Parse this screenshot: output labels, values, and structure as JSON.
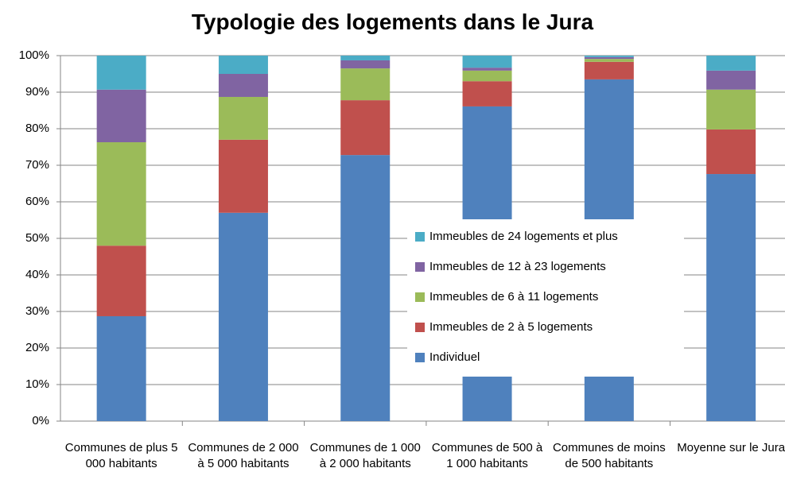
{
  "chart_data": {
    "type": "bar",
    "stacked": true,
    "title": "Typologie des logements dans le Jura",
    "categories": [
      "Communes de plus 5 000 habitants",
      "Communes de 2 000 à 5 000 habitants",
      "Communes de 1 000 à 2 000 habitants",
      "Communes de 500 à 1 000 habitants",
      "Communes de moins de 500 habitants",
      "Moyenne sur le Jura"
    ],
    "series": [
      {
        "name": "Individuel",
        "color": "#4f81bd",
        "values": [
          28.7,
          57.0,
          72.8,
          86.1,
          93.5,
          67.6
        ]
      },
      {
        "name": "Immeubles de 2 à 5 logements",
        "color": "#c0504d",
        "values": [
          19.3,
          20.0,
          15.0,
          6.9,
          4.8,
          12.2
        ]
      },
      {
        "name": "Immeubles de 6 à 11 logements",
        "color": "#9bbb59",
        "values": [
          28.3,
          11.7,
          8.7,
          2.9,
          0.8,
          10.9
        ]
      },
      {
        "name": "Immeubles de 12 à 23 logements",
        "color": "#8064a2",
        "values": [
          14.4,
          6.3,
          2.2,
          0.8,
          0.5,
          5.2
        ]
      },
      {
        "name": "Immeubles de 24 logements et plus",
        "color": "#4bacc6",
        "values": [
          9.3,
          5.0,
          1.3,
          3.3,
          0.4,
          4.1
        ]
      }
    ],
    "ylim": [
      0,
      100
    ],
    "yticks": [
      {
        "value": 0,
        "label": "0%"
      },
      {
        "value": 10,
        "label": "10%"
      },
      {
        "value": 20,
        "label": "20%"
      },
      {
        "value": 30,
        "label": "30%"
      },
      {
        "value": 40,
        "label": "40%"
      },
      {
        "value": 50,
        "label": "50%"
      },
      {
        "value": 60,
        "label": "60%"
      },
      {
        "value": 70,
        "label": "70%"
      },
      {
        "value": 80,
        "label": "80%"
      },
      {
        "value": 90,
        "label": "90%"
      },
      {
        "value": 100,
        "label": "100%"
      }
    ],
    "grid": true,
    "legend": "center"
  }
}
